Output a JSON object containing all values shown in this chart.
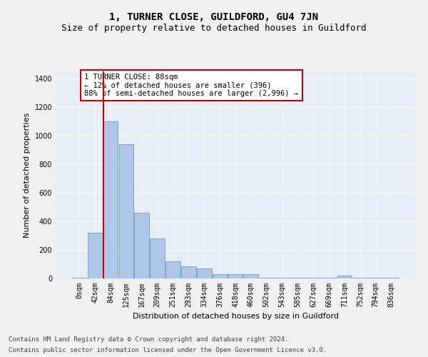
{
  "title": "1, TURNER CLOSE, GUILDFORD, GU4 7JN",
  "subtitle": "Size of property relative to detached houses in Guildford",
  "xlabel": "Distribution of detached houses by size in Guildford",
  "ylabel": "Number of detached properties",
  "bar_labels": [
    "0sqm",
    "42sqm",
    "84sqm",
    "125sqm",
    "167sqm",
    "209sqm",
    "251sqm",
    "293sqm",
    "334sqm",
    "376sqm",
    "418sqm",
    "460sqm",
    "502sqm",
    "543sqm",
    "585sqm",
    "627sqm",
    "669sqm",
    "711sqm",
    "752sqm",
    "794sqm",
    "836sqm"
  ],
  "bar_values": [
    5,
    320,
    1100,
    940,
    460,
    280,
    120,
    85,
    70,
    28,
    28,
    28,
    4,
    4,
    4,
    4,
    4,
    18,
    4,
    4,
    4
  ],
  "bar_color": "#aec6e8",
  "bar_edge_color": "#6a9ec0",
  "fig_bg_color": "#f0f0f0",
  "axes_bg_color": "#e8eef8",
  "grid_color": "#ffffff",
  "vline_color": "#cc0000",
  "vline_x_index": 1.55,
  "annotation_text": "1 TURNER CLOSE: 88sqm\n← 12% of detached houses are smaller (396)\n88% of semi-detached houses are larger (2,996) →",
  "annotation_box_facecolor": "#ffffff",
  "annotation_box_edgecolor": "#cc0000",
  "ylim": [
    0,
    1450
  ],
  "yticks": [
    0,
    200,
    400,
    600,
    800,
    1000,
    1200,
    1400
  ],
  "footer1": "Contains HM Land Registry data © Crown copyright and database right 2024.",
  "footer2": "Contains public sector information licensed under the Open Government Licence v3.0.",
  "title_fontsize": 10,
  "subtitle_fontsize": 9,
  "axis_label_fontsize": 8,
  "tick_fontsize": 7,
  "annotation_fontsize": 7.5,
  "footer_fontsize": 6.5,
  "ylabel_fontsize": 8
}
